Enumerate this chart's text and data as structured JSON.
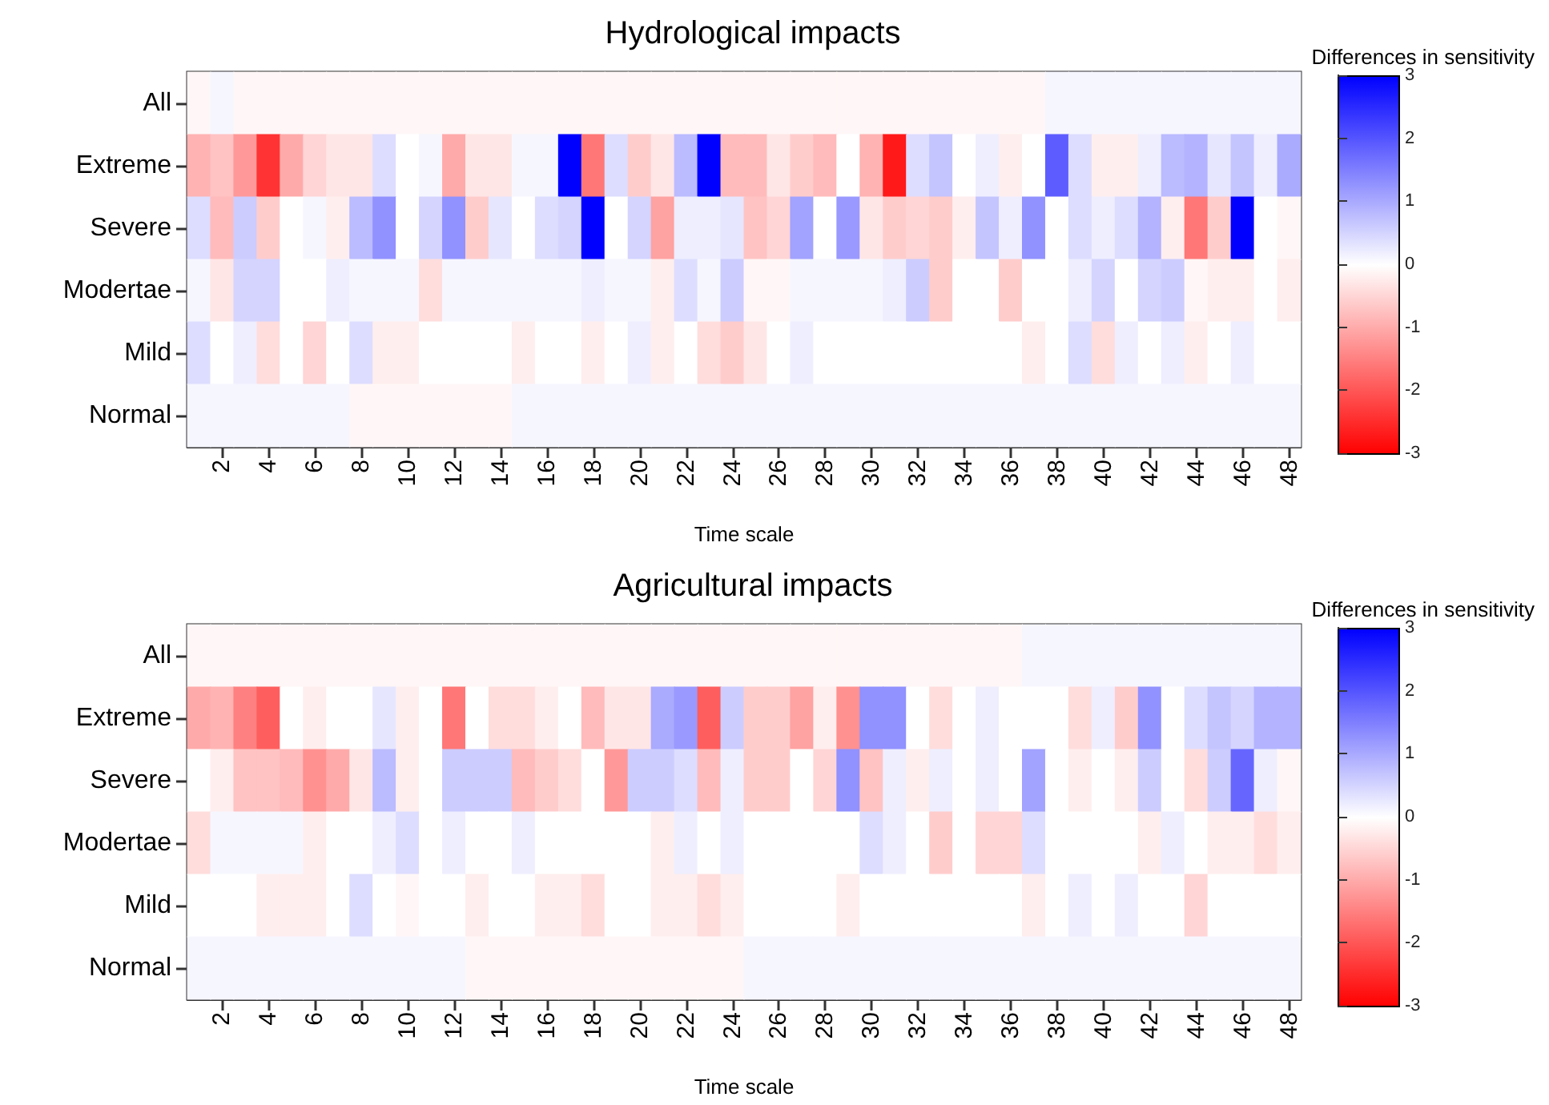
{
  "chart_data": [
    {
      "type": "heatmap",
      "title": "Hydrological impacts",
      "xlabel": "Time scale",
      "clabel": "Differences in sensitivity",
      "categories": [
        null,
        "2",
        null,
        "4",
        null,
        "6",
        null,
        "8",
        null,
        "10",
        null,
        "12",
        null,
        "14",
        null,
        "16",
        null,
        "18",
        null,
        "20",
        null,
        "22",
        null,
        "24",
        null,
        "26",
        null,
        "28",
        null,
        "30",
        null,
        "32",
        null,
        "34",
        null,
        "36",
        null,
        "38",
        null,
        "40",
        null,
        "42",
        null,
        "44",
        null,
        "46",
        null,
        "48"
      ],
      "y_categories": [
        "All",
        "Extreme",
        "Severe",
        "Modertae",
        "Mild",
        "Normal"
      ],
      "cells": [
        [
          -0.1,
          0.1,
          -0.1,
          -0.1,
          -0.1,
          -0.1,
          -0.1,
          -0.1,
          -0.1,
          -0.1,
          -0.1,
          -0.1,
          -0.1,
          -0.1,
          -0.1,
          -0.1,
          -0.1,
          -0.1,
          -0.1,
          -0.1,
          -0.1,
          -0.1,
          -0.1,
          -0.1,
          -0.1,
          -0.1,
          -0.1,
          -0.1,
          -0.1,
          -0.1,
          -0.1,
          -0.1,
          -0.1,
          -0.1,
          -0.1,
          -0.1,
          -0.1,
          0.1,
          0.1,
          0.1,
          0.1,
          0.1,
          0.1,
          0.1,
          0.1,
          0.1,
          0.1,
          0.1
        ],
        [
          -0.9,
          -0.7,
          -1.2,
          -2.4,
          -1.0,
          -0.5,
          -0.3,
          -0.3,
          0.4,
          0,
          0.1,
          -1.0,
          -0.3,
          -0.3,
          0.1,
          0.1,
          3,
          -1.6,
          0.4,
          -0.6,
          -0.3,
          0.8,
          3,
          -0.8,
          -0.8,
          -0.3,
          -0.6,
          -0.8,
          0,
          -0.9,
          -2.7,
          0.4,
          0.7,
          0,
          0.2,
          -0.2,
          0,
          1.9,
          0.4,
          -0.2,
          -0.2,
          0.2,
          0.8,
          0.9,
          0.3,
          0.7,
          0.2,
          1.0
        ],
        [
          0.4,
          -0.8,
          0.6,
          -0.6,
          0,
          0.1,
          -0.2,
          0.8,
          1.3,
          0,
          0.5,
          1.3,
          -0.6,
          0.3,
          0,
          0.4,
          0.5,
          3,
          0,
          0.5,
          -1.1,
          0.2,
          0.2,
          0.3,
          -0.7,
          -0.5,
          1.1,
          0,
          1.2,
          -0.3,
          -0.6,
          -0.5,
          -0.6,
          -0.2,
          0.7,
          0.2,
          1.3,
          0,
          0.4,
          0.2,
          0.4,
          0.9,
          -0.2,
          -1.6,
          -0.6,
          3,
          0,
          -0.1
        ],
        [
          0.1,
          -0.3,
          0.5,
          0.5,
          0,
          0,
          0.2,
          0.1,
          0.1,
          0.1,
          -0.4,
          0.1,
          0.1,
          0.1,
          0.1,
          0.1,
          0.1,
          0.2,
          0.1,
          0.1,
          -0.2,
          0.4,
          0.1,
          0.6,
          -0.1,
          -0.1,
          0.1,
          0.1,
          0.1,
          0.1,
          0.2,
          0.6,
          -0.6,
          0,
          0,
          -0.6,
          0,
          0,
          0.2,
          0.5,
          0,
          0.5,
          0.6,
          -0.1,
          -0.2,
          -0.2,
          0,
          -0.2
        ],
        [
          0.4,
          0,
          0.2,
          -0.4,
          0,
          -0.5,
          0,
          0.4,
          -0.2,
          -0.2,
          0,
          0,
          0,
          0,
          -0.2,
          0,
          0,
          -0.2,
          0,
          0.2,
          -0.2,
          0,
          -0.4,
          -0.6,
          -0.3,
          0,
          0.2,
          0,
          0,
          0,
          0,
          0,
          0,
          0,
          0,
          0,
          -0.2,
          0,
          0.4,
          -0.4,
          0.2,
          0,
          0.2,
          -0.2,
          0,
          0.2,
          0,
          0
        ],
        [
          0.1,
          0.1,
          0.1,
          0.1,
          0.1,
          0.1,
          0.1,
          -0.1,
          -0.1,
          -0.1,
          -0.1,
          -0.1,
          -0.1,
          -0.1,
          0.1,
          0.1,
          0.1,
          0.1,
          0.1,
          0.1,
          0.1,
          0.1,
          0.1,
          0.1,
          0.1,
          0.1,
          0.1,
          0.1,
          0.1,
          0.1,
          0.1,
          0.1,
          0.1,
          0.1,
          0.1,
          0.1,
          0.1,
          0.1,
          0.1,
          0.1,
          0.1,
          0.1,
          0.1,
          0.1,
          0.1,
          0.1,
          0.1,
          0.1
        ]
      ],
      "clim": [
        -3,
        3
      ],
      "cticks": [
        -3,
        -2,
        -1,
        0,
        1,
        2,
        3
      ]
    },
    {
      "type": "heatmap",
      "title": "Agricultural impacts",
      "xlabel": "Time scale",
      "clabel": "Differences in sensitivity",
      "categories": [
        null,
        "2",
        null,
        "4",
        null,
        "6",
        null,
        "8",
        null,
        "10",
        null,
        "12",
        null,
        "14",
        null,
        "16",
        null,
        "18",
        null,
        "20",
        null,
        "22",
        null,
        "24",
        null,
        "26",
        null,
        "28",
        null,
        "30",
        null,
        "32",
        null,
        "34",
        null,
        "36",
        null,
        "38",
        null,
        "40",
        null,
        "42",
        null,
        "44",
        null,
        "46",
        null,
        "48"
      ],
      "y_categories": [
        "All",
        "Extreme",
        "Severe",
        "Modertae",
        "Mild",
        "Normal"
      ],
      "cells": [
        [
          -0.1,
          -0.1,
          -0.1,
          -0.1,
          -0.1,
          -0.1,
          -0.1,
          -0.1,
          -0.1,
          -0.1,
          -0.1,
          -0.1,
          -0.1,
          -0.1,
          -0.1,
          -0.1,
          -0.1,
          -0.1,
          -0.1,
          -0.1,
          -0.1,
          -0.1,
          -0.1,
          -0.1,
          -0.1,
          -0.1,
          -0.1,
          -0.1,
          -0.1,
          -0.1,
          -0.1,
          -0.1,
          -0.1,
          -0.1,
          -0.1,
          -0.1,
          0.1,
          0.1,
          0.1,
          0.1,
          0.1,
          0.1,
          0.1,
          0.1,
          0.1,
          0.1,
          0.1,
          0.1
        ],
        [
          -1.0,
          -0.9,
          -1.5,
          -1.9,
          0,
          -0.2,
          0,
          0,
          0.3,
          -0.2,
          0,
          -1.6,
          0,
          -0.4,
          -0.4,
          -0.2,
          0,
          -0.8,
          -0.3,
          -0.3,
          1.0,
          1.2,
          -1.9,
          0.6,
          -0.6,
          -0.6,
          -1.1,
          -0.2,
          -1.3,
          1.3,
          1.3,
          0,
          -0.4,
          0,
          0.2,
          0,
          0,
          0,
          -0.4,
          0.2,
          -0.6,
          1.3,
          0,
          0.4,
          0.7,
          0.5,
          0.9,
          0.9
        ],
        [
          0,
          -0.2,
          -0.7,
          -0.7,
          -0.8,
          -1.3,
          -1.0,
          -0.3,
          0.8,
          -0.2,
          0,
          0.6,
          0.6,
          0.6,
          -0.8,
          -0.6,
          -0.4,
          0,
          -1.2,
          0.6,
          0.6,
          0.4,
          -0.8,
          0.2,
          -0.6,
          -0.6,
          0,
          -0.5,
          1.3,
          -0.7,
          0.2,
          -0.2,
          0.2,
          0,
          0.2,
          0,
          1.1,
          0,
          -0.2,
          0,
          -0.2,
          0.6,
          0,
          -0.4,
          0.6,
          1.8,
          0.2,
          -0.1
        ],
        [
          -0.4,
          0.1,
          0.1,
          0.1,
          0.1,
          -0.2,
          0,
          0,
          0.2,
          0.4,
          0,
          0.2,
          0,
          0,
          0.2,
          0,
          0,
          0,
          0,
          0,
          -0.2,
          0.2,
          0,
          0.2,
          0,
          0,
          0,
          0,
          0,
          0.4,
          0.2,
          0,
          -0.6,
          0,
          -0.5,
          -0.5,
          0.4,
          0,
          0,
          0,
          0,
          -0.2,
          0.2,
          0,
          -0.2,
          -0.2,
          -0.4,
          -0.2
        ],
        [
          0,
          0,
          0,
          -0.2,
          -0.2,
          -0.2,
          0,
          0.4,
          0,
          -0.1,
          0,
          0,
          -0.2,
          0,
          0,
          -0.2,
          -0.2,
          -0.4,
          0,
          0,
          -0.2,
          -0.2,
          -0.4,
          -0.2,
          0,
          0,
          0,
          0,
          -0.2,
          0,
          0,
          0,
          0,
          0,
          0,
          0,
          -0.2,
          0,
          0.2,
          0,
          0.2,
          0,
          0,
          -0.5,
          0,
          0,
          0,
          0
        ],
        [
          0.1,
          0.1,
          0.1,
          0.1,
          0.1,
          0.1,
          0.1,
          0.1,
          0.1,
          0.1,
          0.1,
          0.1,
          -0.1,
          -0.1,
          -0.1,
          -0.1,
          -0.1,
          -0.1,
          -0.1,
          -0.1,
          -0.1,
          -0.1,
          -0.1,
          -0.1,
          0.1,
          0.1,
          0.1,
          0.1,
          0.1,
          0.1,
          0.1,
          0.1,
          0.1,
          0.1,
          0.1,
          0.1,
          0.1,
          0.1,
          0.1,
          0.1,
          0.1,
          0.1,
          0.1,
          0.1,
          0.1,
          0.1,
          0.1,
          0.1
        ]
      ],
      "clim": [
        -3,
        3
      ],
      "cticks": [
        -3,
        -2,
        -1,
        0,
        1,
        2,
        3
      ]
    }
  ]
}
